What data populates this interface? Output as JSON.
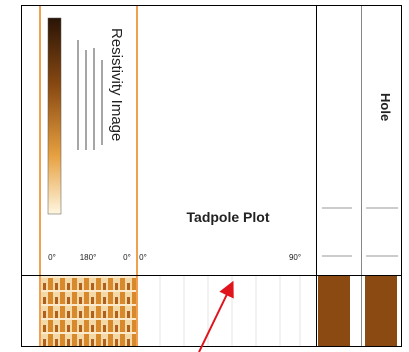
{
  "resistivity_track": {
    "title": "Resistivity Image",
    "scale_labels": [
      "0°",
      "180°",
      "0°"
    ]
  },
  "tadpole_track": {
    "title": "Tadpole Plot",
    "scale_labels": [
      "0°",
      "90°"
    ]
  },
  "hole_track": {
    "title": "Hole"
  }
}
